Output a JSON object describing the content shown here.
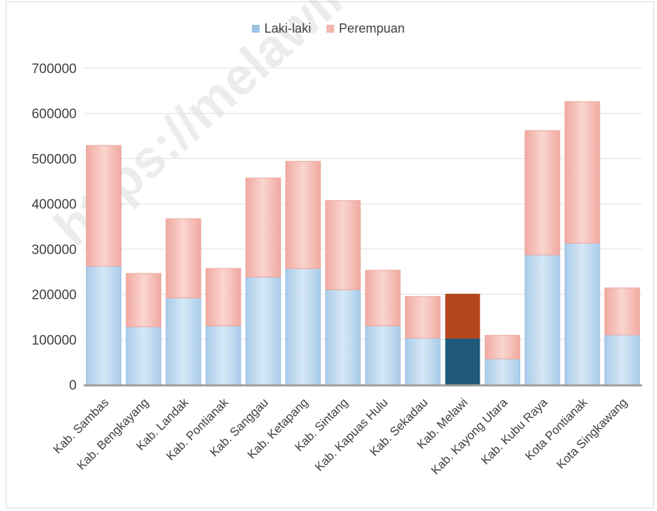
{
  "colors": {
    "laki": "#9dc3e6",
    "perempuan": "#f4b7ae",
    "highlight_laki": "#1f5a7a",
    "highlight_perempuan": "#b5461d",
    "axis": "#9e9e9e",
    "grid": "#e0e0e0",
    "text": "#404040"
  },
  "watermark": "https://melawikab.bps.go.id",
  "chart_data": {
    "type": "bar",
    "stacked": true,
    "categories": [
      "Kab. Sambas",
      "Kab. Bengkayang",
      "Kab. Landak",
      "Kab. Pontianak",
      "Kab. Sanggau",
      "Kab. Ketapang",
      "Kab. Sintang",
      "Kab. Kapuas Hulu",
      "Kab. Sekadau",
      "Kab. Melawi",
      "Kab. Kayong Utara",
      "Kab. Kubu Raya",
      "Kota Pontianak",
      "Kota Singkawang"
    ],
    "series": [
      {
        "name": "Laki-laki",
        "values": [
          262000,
          128000,
          192000,
          130000,
          238000,
          257000,
          210000,
          130000,
          103000,
          102000,
          57000,
          287000,
          313000,
          110000
        ]
      },
      {
        "name": "Perempuan",
        "values": [
          267000,
          118000,
          175000,
          127000,
          219000,
          237000,
          197000,
          123000,
          92000,
          99000,
          52000,
          275000,
          313000,
          104000
        ]
      }
    ],
    "highlight_category": "Kab. Melawi",
    "yticks": [
      "0",
      "100000",
      "200000",
      "300000",
      "400000",
      "500000",
      "600000",
      "700000"
    ],
    "ylim": [
      0,
      700000
    ],
    "grid": true,
    "legend": "top-center"
  }
}
